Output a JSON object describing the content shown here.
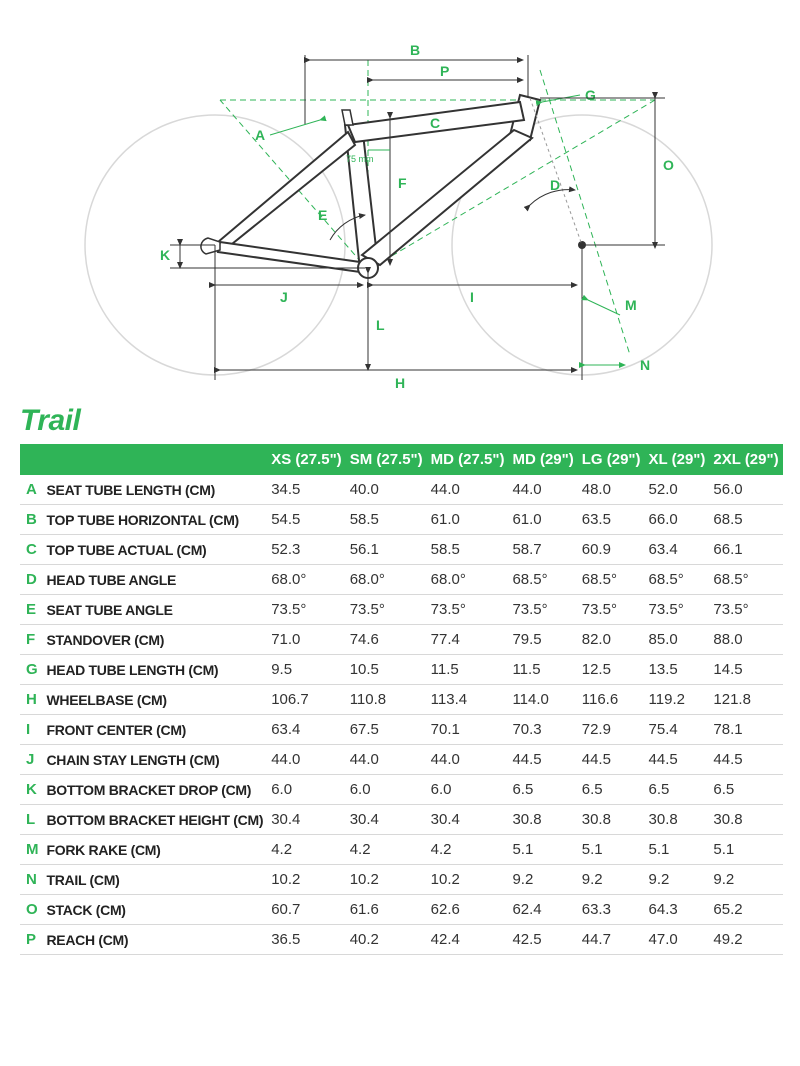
{
  "title": "Trail",
  "diagram": {
    "frame_stroke": "#333333",
    "frame_fill": "#ffffff",
    "dim_color": "#2fb457",
    "wheel_stroke": "#d8d8d8",
    "note": "75 mm",
    "labels": [
      "A",
      "B",
      "C",
      "D",
      "E",
      "F",
      "G",
      "H",
      "I",
      "J",
      "K",
      "L",
      "M",
      "N",
      "O",
      "P"
    ]
  },
  "table": {
    "header_bg": "#2fb457",
    "header_fg": "#ffffff",
    "border_color": "#d8d8d8",
    "columns": [
      "",
      "",
      "XS (27.5\")",
      "SM (27.5\")",
      "MD (27.5\")",
      "MD (29\")",
      "LG (29\")",
      "XL (29\")",
      "2XL (29\")"
    ],
    "rows": [
      {
        "key": "A",
        "label": "SEAT TUBE LENGTH (CM)",
        "vals": [
          "34.5",
          "40.0",
          "44.0",
          "44.0",
          "48.0",
          "52.0",
          "56.0"
        ]
      },
      {
        "key": "B",
        "label": "TOP TUBE HORIZONTAL (CM)",
        "vals": [
          "54.5",
          "58.5",
          "61.0",
          "61.0",
          "63.5",
          "66.0",
          "68.5"
        ]
      },
      {
        "key": "C",
        "label": "TOP TUBE ACTUAL (CM)",
        "vals": [
          "52.3",
          "56.1",
          "58.5",
          "58.7",
          "60.9",
          "63.4",
          "66.1"
        ]
      },
      {
        "key": "D",
        "label": "HEAD TUBE ANGLE",
        "vals": [
          "68.0°",
          "68.0°",
          "68.0°",
          "68.5°",
          "68.5°",
          "68.5°",
          "68.5°"
        ]
      },
      {
        "key": "E",
        "label": "SEAT TUBE ANGLE",
        "vals": [
          "73.5°",
          "73.5°",
          "73.5°",
          "73.5°",
          "73.5°",
          "73.5°",
          "73.5°"
        ]
      },
      {
        "key": "F",
        "label": "STANDOVER (CM)",
        "vals": [
          "71.0",
          "74.6",
          "77.4",
          "79.5",
          "82.0",
          "85.0",
          "88.0"
        ]
      },
      {
        "key": "G",
        "label": "HEAD TUBE LENGTH (CM)",
        "vals": [
          "9.5",
          "10.5",
          "11.5",
          "11.5",
          "12.5",
          "13.5",
          "14.5"
        ]
      },
      {
        "key": "H",
        "label": "WHEELBASE (CM)",
        "vals": [
          "106.7",
          "110.8",
          "113.4",
          "114.0",
          "116.6",
          "119.2",
          "121.8"
        ]
      },
      {
        "key": "I",
        "label": "FRONT CENTER (CM)",
        "vals": [
          "63.4",
          "67.5",
          "70.1",
          "70.3",
          "72.9",
          "75.4",
          "78.1"
        ]
      },
      {
        "key": "J",
        "label": "CHAIN STAY LENGTH (CM)",
        "vals": [
          "44.0",
          "44.0",
          "44.0",
          "44.5",
          "44.5",
          "44.5",
          "44.5"
        ]
      },
      {
        "key": "K",
        "label": "BOTTOM BRACKET DROP (CM)",
        "vals": [
          "6.0",
          "6.0",
          "6.0",
          "6.5",
          "6.5",
          "6.5",
          "6.5"
        ]
      },
      {
        "key": "L",
        "label": "BOTTOM BRACKET HEIGHT (CM)",
        "vals": [
          "30.4",
          "30.4",
          "30.4",
          "30.8",
          "30.8",
          "30.8",
          "30.8"
        ]
      },
      {
        "key": "M",
        "label": "FORK RAKE (CM)",
        "vals": [
          "4.2",
          "4.2",
          "4.2",
          "5.1",
          "5.1",
          "5.1",
          "5.1"
        ]
      },
      {
        "key": "N",
        "label": "TRAIL (CM)",
        "vals": [
          "10.2",
          "10.2",
          "10.2",
          "9.2",
          "9.2",
          "9.2",
          "9.2"
        ]
      },
      {
        "key": "O",
        "label": "STACK (CM)",
        "vals": [
          "60.7",
          "61.6",
          "62.6",
          "62.4",
          "63.3",
          "64.3",
          "65.2"
        ]
      },
      {
        "key": "P",
        "label": "REACH (CM)",
        "vals": [
          "36.5",
          "40.2",
          "42.4",
          "42.5",
          "44.7",
          "47.0",
          "49.2"
        ]
      }
    ]
  }
}
